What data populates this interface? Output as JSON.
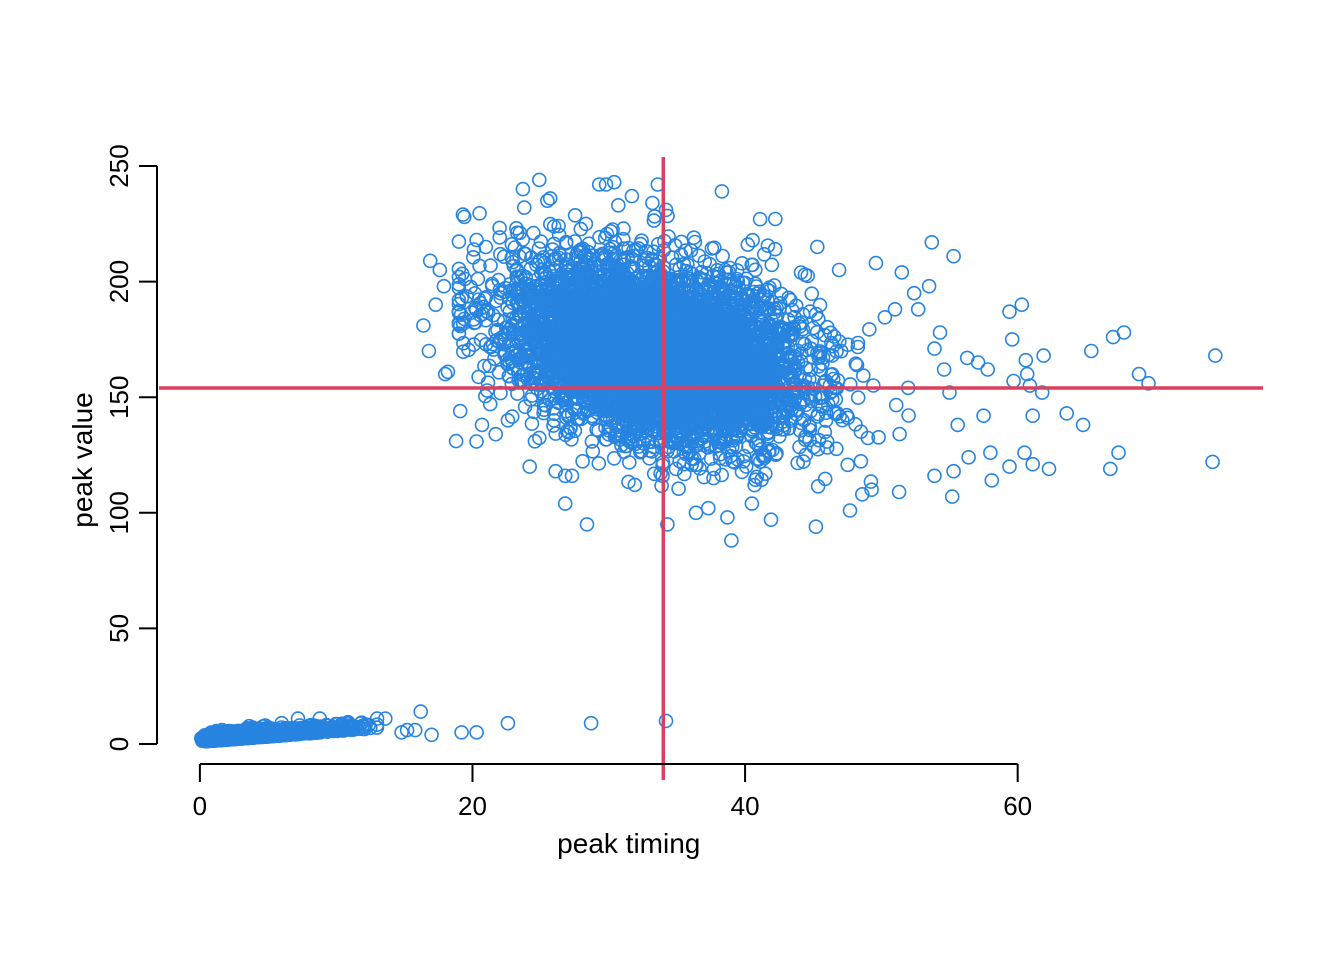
{
  "chart_data": {
    "type": "scatter",
    "xlabel": "peak timing",
    "ylabel": "peak value",
    "xlim": [
      -3.0,
      78.0
    ],
    "ylim": [
      0,
      250
    ],
    "x_ticks": [
      "0",
      "20",
      "40",
      "60"
    ],
    "y_ticks": [
      "0",
      "50",
      "100",
      "150",
      "200",
      "250"
    ],
    "marker": "open-circle",
    "point_color": "#2784E0",
    "reference_line_color": "#DC3F5F",
    "vertical_reference_line_x": 34.0,
    "horizontal_reference_line_y": 154.0,
    "grid": false,
    "legend": "none",
    "clusters": [
      {
        "description": "main cluster",
        "approx_n_points": 6000,
        "center": [
          33,
          170
        ],
        "x_range": [
          16,
          75
        ],
        "y_range": [
          88,
          245
        ]
      },
      {
        "description": "near-zero cluster",
        "approx_n_points": 2500,
        "center": [
          4,
          3
        ],
        "x_range": [
          0,
          17
        ],
        "y_range": [
          0,
          14
        ]
      }
    ],
    "points": [
      [
        74.5,
        168
      ],
      [
        74.3,
        122
      ],
      [
        69.6,
        156
      ],
      [
        68.9,
        160
      ],
      [
        67.8,
        178
      ],
      [
        67.0,
        176
      ],
      [
        67.4,
        126
      ],
      [
        66.8,
        119
      ],
      [
        65.4,
        170
      ],
      [
        64.8,
        138
      ],
      [
        63.6,
        143
      ],
      [
        62.3,
        119
      ],
      [
        61.8,
        152
      ],
      [
        61.9,
        168
      ],
      [
        61.1,
        142
      ],
      [
        61.1,
        121
      ],
      [
        60.9,
        155
      ],
      [
        60.7,
        160
      ],
      [
        60.6,
        166
      ],
      [
        60.5,
        126
      ],
      [
        60.3,
        190
      ],
      [
        59.7,
        157
      ],
      [
        59.6,
        175
      ],
      [
        59.4,
        120
      ],
      [
        59.4,
        187
      ],
      [
        58.1,
        114
      ],
      [
        58.0,
        126
      ],
      [
        57.8,
        162
      ],
      [
        57.5,
        142
      ],
      [
        57.1,
        165
      ],
      [
        56.4,
        124
      ],
      [
        56.3,
        167
      ],
      [
        55.3,
        211
      ],
      [
        55.2,
        107
      ],
      [
        54.6,
        162
      ],
      [
        53.7,
        217
      ],
      [
        53.5,
        198
      ],
      [
        53.9,
        171
      ],
      [
        55.0,
        152
      ],
      [
        55.6,
        138
      ],
      [
        55.3,
        118
      ],
      [
        53.9,
        116
      ],
      [
        54.3,
        178
      ],
      [
        52.7,
        188
      ],
      [
        52.4,
        195
      ],
      [
        51.5,
        204
      ],
      [
        51.3,
        109
      ],
      [
        51.0,
        188
      ],
      [
        49.6,
        208
      ],
      [
        48.6,
        108
      ],
      [
        47.7,
        101
      ],
      [
        46.9,
        205
      ],
      [
        45.3,
        215
      ],
      [
        45.2,
        94
      ],
      [
        44.4,
        203
      ],
      [
        42.2,
        214
      ],
      [
        41.1,
        227
      ],
      [
        41.9,
        97
      ],
      [
        40.7,
        112
      ],
      [
        40.5,
        104
      ],
      [
        40.2,
        216
      ],
      [
        39.0,
        88
      ],
      [
        38.3,
        239
      ],
      [
        38.7,
        98
      ],
      [
        37.3,
        102
      ],
      [
        36.4,
        100
      ],
      [
        34.3,
        95
      ],
      [
        34.2,
        231
      ],
      [
        33.6,
        242
      ],
      [
        33.2,
        234
      ],
      [
        31.7,
        237
      ],
      [
        30.7,
        233
      ],
      [
        30.4,
        243
      ],
      [
        29.8,
        242
      ],
      [
        29.3,
        242
      ],
      [
        28.4,
        95
      ],
      [
        27.9,
        213
      ],
      [
        26.8,
        104
      ],
      [
        25.7,
        236
      ],
      [
        25.5,
        235
      ],
      [
        24.9,
        244
      ],
      [
        24.2,
        120
      ],
      [
        23.8,
        232
      ],
      [
        23.7,
        240
      ],
      [
        22.6,
        140
      ],
      [
        20.3,
        218
      ],
      [
        19.4,
        228
      ],
      [
        19.1,
        144
      ],
      [
        18.8,
        131
      ],
      [
        18.2,
        161
      ],
      [
        18.0,
        160
      ],
      [
        17.9,
        198
      ],
      [
        17.6,
        205
      ],
      [
        17.3,
        190
      ],
      [
        16.9,
        209
      ],
      [
        16.8,
        170
      ],
      [
        16.4,
        181
      ],
      [
        19.3,
        229
      ],
      [
        20.7,
        138
      ],
      [
        21.3,
        147
      ],
      [
        21.7,
        134
      ],
      [
        26.1,
        118
      ],
      [
        26.8,
        116
      ],
      [
        27.3,
        116
      ],
      [
        32.2,
        131
      ],
      [
        33.8,
        117
      ],
      [
        35.5,
        121
      ],
      [
        34.2,
        10
      ],
      [
        28.7,
        9
      ],
      [
        22.6,
        9
      ],
      [
        20.3,
        5
      ],
      [
        19.2,
        5
      ],
      [
        17.0,
        4
      ],
      [
        16.2,
        14
      ],
      [
        15.8,
        6
      ],
      [
        15.2,
        6
      ],
      [
        14.8,
        5
      ],
      [
        13.6,
        11
      ],
      [
        13.0,
        11
      ],
      [
        12.5,
        7
      ],
      [
        11.4,
        7
      ],
      [
        10.8,
        8
      ],
      [
        9.6,
        7
      ],
      [
        8.8,
        11
      ],
      [
        7.2,
        11
      ],
      [
        6.0,
        9
      ],
      [
        4.8,
        8
      ]
    ]
  }
}
